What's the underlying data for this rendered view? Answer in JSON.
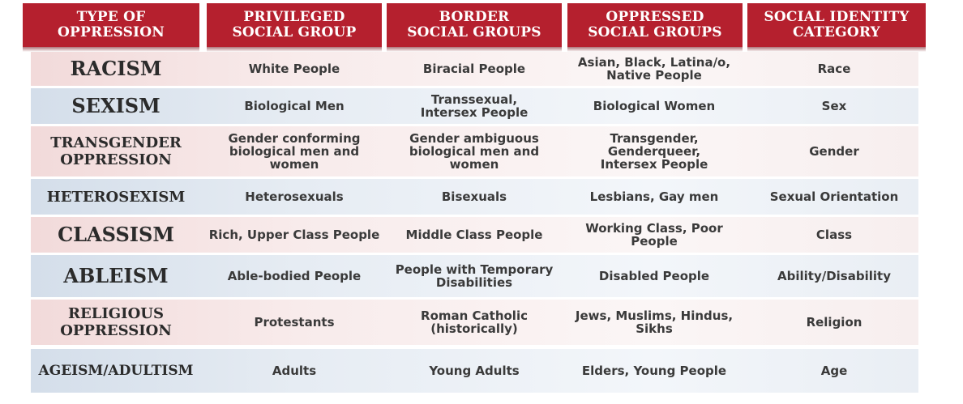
{
  "headers": [
    "TYPE OF\nOPPRESSION",
    "PRIVILEGED\nSOCIAL GROUP",
    "BORDER\nSOCIAL GROUPS",
    "OPPRESSED\nSOCIAL GROUPS",
    "SOCIAL IDENTITY\nCATEGORY"
  ],
  "rows": [
    {
      "type": "RACISM",
      "privileged": "White People",
      "border": "Biracial People",
      "oppressed": "Asian, Black, Latina/o,\nNative People",
      "category": "Race"
    },
    {
      "type": "SEXISM",
      "privileged": "Biological Men",
      "border": "Transsexual,\nIntersex People",
      "oppressed": "Biological Women",
      "category": "Sex"
    },
    {
      "type": "TRANSGENDER\nOPPRESSION",
      "privileged": "Gender conforming\nbiological men and women",
      "border": "Gender ambiguous\nbiological men and women",
      "oppressed": "Transgender, Genderqueer,\nIntersex People",
      "category": "Gender"
    },
    {
      "type": "HETEROSEXISM",
      "privileged": "Heterosexuals",
      "border": "Bisexuals",
      "oppressed": "Lesbians, Gay men",
      "category": "Sexual Orientation"
    },
    {
      "type": "CLASSISM",
      "privileged": "Rich, Upper Class People",
      "border": "Middle Class People",
      "oppressed": "Working Class, Poor People",
      "category": "Class"
    },
    {
      "type": "ABLEISM",
      "privileged": "Able-bodied People",
      "border": "People with Temporary\nDisabilities",
      "oppressed": "Disabled People",
      "category": "Ability/Disability"
    },
    {
      "type": "RELIGIOUS\nOPPRESSION",
      "privileged": "Protestants",
      "border": "Roman Catholic\n(historically)",
      "oppressed": "Jews, Muslims, Hindus, Sikhs",
      "category": "Religion"
    },
    {
      "type": "AGEISM/ADULTISM",
      "privileged": "Adults",
      "border": "Young Adults",
      "oppressed": "Elders, Young People",
      "category": "Age"
    }
  ],
  "colors": {
    "header_red": "#b5202e",
    "row_pink": "#f2dada",
    "row_blue": "#d4deea",
    "text_dark": "#2b2b2b"
  }
}
